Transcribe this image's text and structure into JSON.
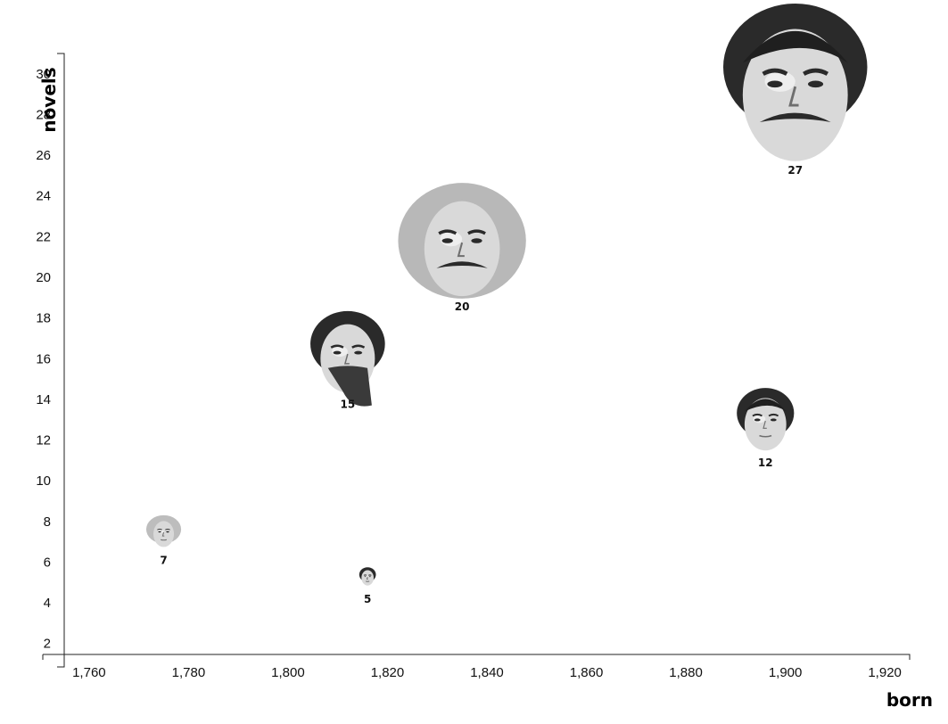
{
  "chart_data": {
    "type": "scatter",
    "xlabel": "born",
    "ylabel": "novels",
    "xlim": [
      1755,
      1925
    ],
    "ylim": [
      1.2,
      31
    ],
    "x_ticks": [
      {
        "value": 1760,
        "label": "1,760"
      },
      {
        "value": 1780,
        "label": "1,780"
      },
      {
        "value": 1800,
        "label": "1,800"
      },
      {
        "value": 1820,
        "label": "1,820"
      },
      {
        "value": 1840,
        "label": "1,840"
      },
      {
        "value": 1860,
        "label": "1,860"
      },
      {
        "value": 1880,
        "label": "1,880"
      },
      {
        "value": 1900,
        "label": "1,900"
      },
      {
        "value": 1920,
        "label": "1,920"
      }
    ],
    "y_ticks": [
      {
        "value": 2,
        "label": "2"
      },
      {
        "value": 4,
        "label": "4"
      },
      {
        "value": 6,
        "label": "6"
      },
      {
        "value": 8,
        "label": "8"
      },
      {
        "value": 10,
        "label": "10"
      },
      {
        "value": 12,
        "label": "12"
      },
      {
        "value": 14,
        "label": "14"
      },
      {
        "value": 16,
        "label": "16"
      },
      {
        "value": 18,
        "label": "18"
      },
      {
        "value": 20,
        "label": "20"
      },
      {
        "value": 22,
        "label": "22"
      },
      {
        "value": 24,
        "label": "24"
      },
      {
        "value": 26,
        "label": "26"
      },
      {
        "value": 28,
        "label": "28"
      },
      {
        "value": 30,
        "label": "30"
      }
    ],
    "points": [
      {
        "x": 1775,
        "y": 7,
        "label": "7",
        "style": "bonnet"
      },
      {
        "x": 1816,
        "y": 5,
        "label": "5",
        "style": "woman"
      },
      {
        "x": 1812,
        "y": 15,
        "label": "15",
        "style": "bearded"
      },
      {
        "x": 1835,
        "y": 20,
        "label": "20",
        "style": "moustache-wild"
      },
      {
        "x": 1896,
        "y": 12,
        "label": "12",
        "style": "slick"
      },
      {
        "x": 1902,
        "y": 27,
        "label": "27",
        "style": "moustache-slick"
      }
    ],
    "grid": false,
    "marker": "portrait photos"
  }
}
